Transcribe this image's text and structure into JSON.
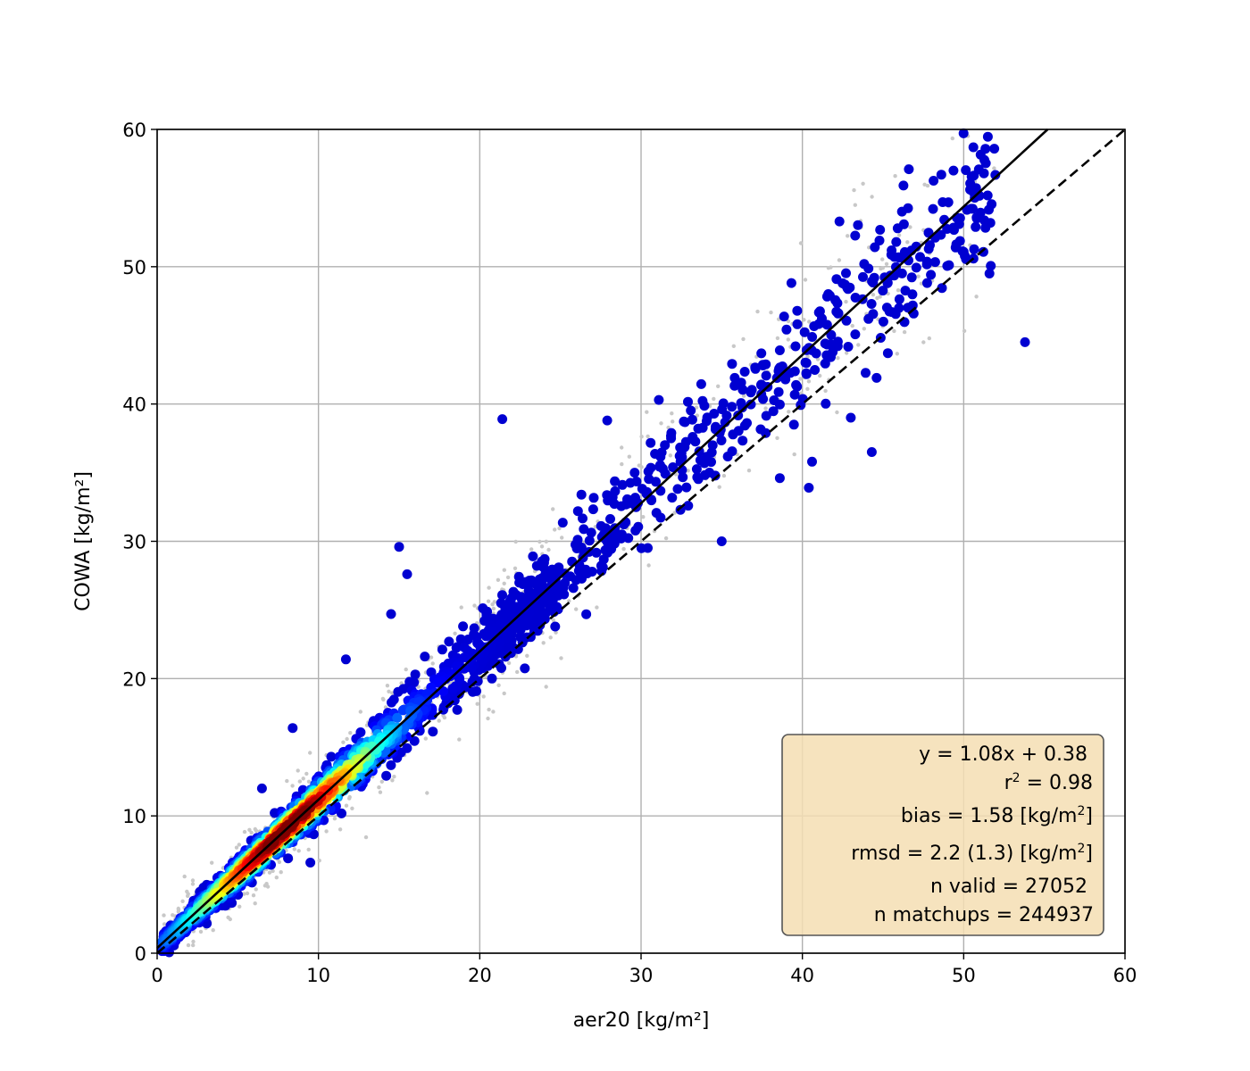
{
  "chart_data": {
    "type": "scatter",
    "title": "",
    "xlabel": "aer20 [kg/m²]",
    "ylabel": "COWA [kg/m²]",
    "xlim": [
      0,
      60
    ],
    "ylim": [
      0,
      60
    ],
    "xticks": [
      0,
      10,
      20,
      30,
      40,
      50,
      60
    ],
    "yticks": [
      0,
      10,
      20,
      30,
      40,
      50,
      60
    ],
    "grid": true,
    "colormap": "jet (point density)",
    "fit_line": {
      "slope": 1.08,
      "intercept": 0.38,
      "style": "solid",
      "color": "#000000"
    },
    "identity_line": {
      "slope": 1,
      "intercept": 0,
      "style": "dashed",
      "color": "#000000"
    },
    "background_points_color": "#c8c8c8",
    "outlier_points": [
      [
        21.4,
        38.9
      ],
      [
        15.0,
        29.6
      ],
      [
        15.5,
        27.6
      ],
      [
        14.5,
        24.7
      ],
      [
        11.7,
        21.4
      ],
      [
        8.4,
        16.4
      ],
      [
        6.5,
        12.0
      ],
      [
        9.5,
        6.6
      ],
      [
        53.8,
        44.5
      ],
      [
        44.3,
        36.5
      ],
      [
        40.6,
        35.8
      ],
      [
        40.4,
        33.9
      ],
      [
        38.6,
        34.6
      ],
      [
        35.0,
        30.0
      ],
      [
        41.7,
        47.9
      ],
      [
        42.3,
        53.3
      ],
      [
        46.6,
        57.1
      ],
      [
        50.6,
        58.7
      ],
      [
        48.7,
        54.7
      ],
      [
        44.1,
        46.2
      ],
      [
        44.6,
        41.9
      ],
      [
        43.0,
        39.0
      ],
      [
        31.1,
        40.3
      ],
      [
        27.9,
        38.8
      ],
      [
        29.6,
        35.0
      ],
      [
        26.3,
        33.4
      ],
      [
        22.6,
        25.8
      ],
      [
        18.6,
        22.3
      ],
      [
        16.0,
        20.3
      ],
      [
        51.6,
        49.5
      ],
      [
        49.5,
        51.4
      ],
      [
        45.3,
        43.7
      ]
    ],
    "stats": {
      "fit": "y = 1.08x + 0.38",
      "r2_prefix": "r",
      "r2_sup": "2",
      "r2_value": " = 0.98",
      "bias_text": "bias = 1.58 [kg/m",
      "bias_sup": "2",
      "bias_end": "]",
      "rmsd_text": "rmsd = 2.2 (1.3) [kg/m",
      "rmsd_sup": "2",
      "rmsd_end": "]",
      "n_valid": "n valid = 27052",
      "n_matchups": "n matchups = 244937",
      "box_fill": "#f5deb3",
      "box_stroke": "#555555"
    }
  }
}
